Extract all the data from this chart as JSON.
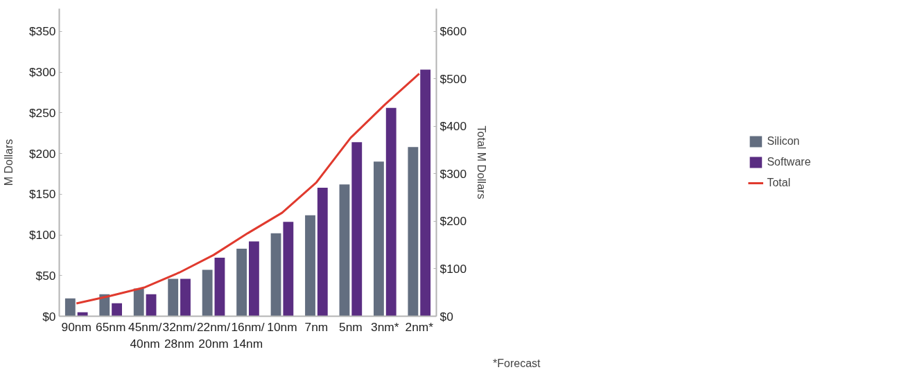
{
  "chart_data": {
    "type": "bar",
    "ylabel": "M Dollars",
    "y2label": "Total M Dollars",
    "categories": [
      "90nm",
      "65nm",
      "45nm/40nm",
      "32nm/28nm",
      "22nm/20nm",
      "16nm/14nm",
      "10nm",
      "7nm",
      "5nm",
      "3nm*",
      "2nm*"
    ],
    "series": [
      {
        "name": "Silicon",
        "color": "#636e80",
        "values": [
          22,
          27,
          34,
          46,
          57,
          83,
          102,
          124,
          162,
          190,
          208
        ]
      },
      {
        "name": "Software",
        "color": "#5a2d82",
        "values": [
          5,
          16,
          27,
          46,
          72,
          92,
          116,
          158,
          214,
          256,
          303
        ]
      },
      {
        "name": "Total",
        "type": "line",
        "axis": "y2",
        "color": "#e03a2e",
        "values": [
          27,
          43,
          61,
          92,
          129,
          175,
          218,
          282,
          376,
          446,
          511
        ]
      }
    ],
    "ylim": [
      0,
      378
    ],
    "yticks": [
      {
        "value": 0,
        "label": "$0"
      },
      {
        "value": 50,
        "label": "$50"
      },
      {
        "value": 100,
        "label": "$100"
      },
      {
        "value": 150,
        "label": "$150"
      },
      {
        "value": 200,
        "label": "$200"
      },
      {
        "value": 250,
        "label": "$250"
      },
      {
        "value": 300,
        "label": "$300"
      },
      {
        "value": 350,
        "label": "$350"
      }
    ],
    "y2lim": [
      0,
      648
    ],
    "y2ticks": [
      {
        "value": 0,
        "label": "$0"
      },
      {
        "value": 100,
        "label": "$100"
      },
      {
        "value": 200,
        "label": "$200"
      },
      {
        "value": 300,
        "label": "$300"
      },
      {
        "value": 400,
        "label": "$400"
      },
      {
        "value": 500,
        "label": "$500"
      },
      {
        "value": 600,
        "label": "$600"
      }
    ],
    "grid": false,
    "legend": "right",
    "annotations": [
      "*Forecast"
    ]
  }
}
